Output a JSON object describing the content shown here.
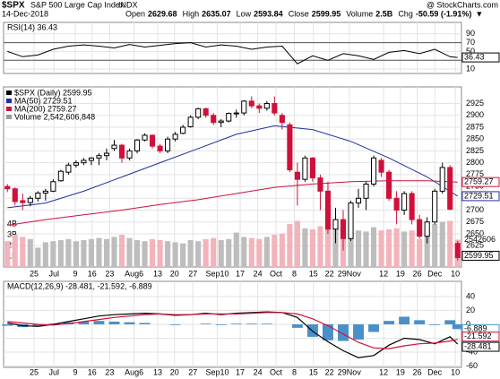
{
  "header": {
    "symbol": "$SPX",
    "name": "S&P 500 Large Cap Index",
    "exchange": "INDX",
    "date": "14-Dec-2018",
    "source": "@ StockCharts.com",
    "quote": [
      {
        "label": "Open",
        "value": "2629.68"
      },
      {
        "label": "High",
        "value": "2635.07"
      },
      {
        "label": "Low",
        "value": "2593.84"
      },
      {
        "label": "Close",
        "value": "2599.95"
      },
      {
        "label": "Volume",
        "value": "2.5B"
      },
      {
        "label": "Chg",
        "value": "-50.59 (-1.91%)"
      }
    ],
    "arrow": "▼"
  },
  "chart_data": [
    {
      "type": "line",
      "ylim": [
        0,
        116
      ],
      "yticks": [
        10,
        30,
        50,
        70,
        90
      ],
      "bands": [
        30,
        70
      ],
      "grid": true,
      "series": [
        {
          "name": "RSI(14) 36.43",
          "color": "#000000",
          "x": [
            0,
            2,
            4,
            6,
            8,
            10,
            12,
            14,
            16,
            18,
            20,
            22,
            24,
            26,
            28,
            30,
            32,
            34,
            36,
            38,
            40,
            42,
            44,
            46,
            48,
            50,
            52,
            54,
            56,
            58,
            59
          ],
          "values": [
            50,
            38,
            42,
            55,
            62,
            65,
            62,
            58,
            66,
            60,
            64,
            68,
            70,
            60,
            65,
            62,
            55,
            60,
            62,
            22,
            40,
            30,
            45,
            40,
            32,
            48,
            52,
            45,
            55,
            38,
            36.43
          ]
        }
      ]
    },
    {
      "type": "candlestick",
      "ylim": [
        2580,
        2960
      ],
      "yticks": [
        2625,
        2650,
        2675,
        2700,
        2725,
        2750,
        2775,
        2800,
        2825,
        2850,
        2875,
        2900,
        2925
      ],
      "grid": true,
      "xlim": [
        -0.5,
        59.5
      ],
      "xticks": [
        {
          "value": 3.5,
          "label": "25"
        },
        {
          "value": 6.1,
          "label": "Jul"
        },
        {
          "value": 8.9,
          "label": "9"
        },
        {
          "value": 11.1,
          "label": "16"
        },
        {
          "value": 13.4,
          "label": "23"
        },
        {
          "value": 16.6,
          "label": "Aug6"
        },
        {
          "value": 19.7,
          "label": "13"
        },
        {
          "value": 21.9,
          "label": "20"
        },
        {
          "value": 24.3,
          "label": "27"
        },
        {
          "value": 27.5,
          "label": "Sep10"
        },
        {
          "value": 30.5,
          "label": "17"
        },
        {
          "value": 32.8,
          "label": "24"
        },
        {
          "value": 35.2,
          "label": "Oct"
        },
        {
          "value": 37.6,
          "label": "8"
        },
        {
          "value": 40.1,
          "label": "15"
        },
        {
          "value": 42.2,
          "label": "22"
        },
        {
          "value": 44.8,
          "label": "29Nov"
        },
        {
          "value": 49.3,
          "label": "12"
        },
        {
          "value": 51.5,
          "label": "19"
        },
        {
          "value": 53.7,
          "label": "26"
        },
        {
          "value": 56,
          "label": "Dec"
        },
        {
          "value": 58.7,
          "label": "10"
        }
      ],
      "legend": "$SPX (Daily) 2599.95",
      "up_color": "#000000",
      "down_color": "#d0103a",
      "candles": [
        [
          2750,
          2755,
          2738,
          2745
        ],
        [
          2745,
          2748,
          2710,
          2718
        ],
        [
          2720,
          2735,
          2700,
          2716
        ],
        [
          2716,
          2730,
          2708,
          2725
        ],
        [
          2725,
          2740,
          2718,
          2736
        ],
        [
          2736,
          2745,
          2720,
          2740
        ],
        [
          2740,
          2765,
          2738,
          2760
        ],
        [
          2762,
          2785,
          2760,
          2782
        ],
        [
          2780,
          2800,
          2775,
          2795
        ],
        [
          2795,
          2805,
          2790,
          2800
        ],
        [
          2800,
          2810,
          2795,
          2805
        ],
        [
          2805,
          2812,
          2795,
          2810
        ],
        [
          2810,
          2820,
          2795,
          2815
        ],
        [
          2815,
          2830,
          2805,
          2820
        ],
        [
          2830,
          2848,
          2825,
          2837
        ],
        [
          2837,
          2840,
          2800,
          2810
        ],
        [
          2810,
          2830,
          2805,
          2825
        ],
        [
          2825,
          2850,
          2820,
          2848
        ],
        [
          2848,
          2862,
          2845,
          2858
        ],
        [
          2858,
          2860,
          2830,
          2835
        ],
        [
          2835,
          2840,
          2820,
          2825
        ],
        [
          2825,
          2855,
          2820,
          2850
        ],
        [
          2850,
          2865,
          2845,
          2860
        ],
        [
          2862,
          2880,
          2860,
          2875
        ],
        [
          2876,
          2900,
          2874,
          2896
        ],
        [
          2896,
          2916,
          2892,
          2914
        ],
        [
          2914,
          2916,
          2895,
          2900
        ],
        [
          2900,
          2905,
          2880,
          2885
        ],
        [
          2885,
          2892,
          2875,
          2888
        ],
        [
          2888,
          2906,
          2885,
          2904
        ],
        [
          2904,
          2912,
          2895,
          2905
        ],
        [
          2905,
          2932,
          2900,
          2930
        ],
        [
          2930,
          2940,
          2915,
          2920
        ],
        [
          2920,
          2925,
          2905,
          2915
        ],
        [
          2915,
          2930,
          2910,
          2925
        ],
        [
          2925,
          2940,
          2900,
          2905
        ],
        [
          2900,
          2905,
          2870,
          2885
        ],
        [
          2880,
          2885,
          2780,
          2785
        ],
        [
          2780,
          2800,
          2710,
          2765
        ],
        [
          2765,
          2815,
          2760,
          2810
        ],
        [
          2810,
          2812,
          2760,
          2768
        ],
        [
          2768,
          2775,
          2700,
          2740
        ],
        [
          2740,
          2760,
          2650,
          2660
        ],
        [
          2660,
          2705,
          2630,
          2680
        ],
        [
          2680,
          2700,
          2615,
          2640
        ],
        [
          2640,
          2720,
          2635,
          2715
        ],
        [
          2715,
          2745,
          2705,
          2725
        ],
        [
          2725,
          2760,
          2700,
          2755
        ],
        [
          2755,
          2815,
          2750,
          2810
        ],
        [
          2805,
          2810,
          2770,
          2780
        ],
        [
          2780,
          2785,
          2720,
          2725
        ],
        [
          2725,
          2740,
          2670,
          2700
        ],
        [
          2700,
          2740,
          2690,
          2735
        ],
        [
          2735,
          2740,
          2670,
          2680
        ],
        [
          2680,
          2690,
          2640,
          2645
        ],
        [
          2645,
          2685,
          2630,
          2675
        ],
        [
          2675,
          2745,
          2670,
          2740
        ],
        [
          2740,
          2800,
          2735,
          2790
        ],
        [
          2790,
          2795,
          2700,
          2702
        ],
        [
          2629.68,
          2635.07,
          2593.84,
          2599.95
        ]
      ],
      "volume": {
        "name": "Volume 2,542,606,848",
        "tag": "2542606",
        "ylim": [
          0,
          16.75
        ],
        "yticks": [
          {
            "value": 1,
            "label": "1B"
          },
          {
            "value": 2,
            "label": "2B"
          },
          {
            "value": 3,
            "label": "3B"
          },
          {
            "value": 4,
            "label": "4B"
          }
        ],
        "up_color": "#bdbdbd",
        "down_color": "#f2b3bb",
        "values": [
          2.4,
          3.0,
          2.8,
          2.6,
          1.8,
          2.3,
          2.4,
          2.5,
          2.6,
          2.4,
          2.5,
          2.6,
          2.7,
          2.6,
          2.8,
          3.0,
          2.7,
          2.5,
          2.4,
          2.6,
          2.5,
          2.4,
          2.3,
          2.2,
          2.5,
          2.4,
          2.6,
          2.7,
          2.5,
          2.6,
          3.2,
          2.8,
          2.7,
          2.6,
          2.8,
          3.0,
          3.1,
          4.0,
          4.3,
          3.6,
          3.5,
          3.8,
          4.1,
          4.2,
          4.0,
          3.9,
          3.4,
          3.3,
          3.7,
          3.4,
          3.5,
          3.6,
          3.3,
          3.4,
          2.6,
          3.6,
          4.0,
          4.2,
          4.3,
          2.54
        ]
      },
      "series": [
        {
          "name": "MA(50) 2729.51",
          "color": "#1f2f9e",
          "x": [
            0,
            5,
            10,
            15,
            20,
            25,
            30,
            35,
            40,
            45,
            50,
            55,
            59
          ],
          "values": [
            2705,
            2715,
            2740,
            2770,
            2800,
            2830,
            2860,
            2878,
            2870,
            2845,
            2810,
            2770,
            2729.51
          ]
        },
        {
          "name": "MA(200) 2759.27",
          "color": "#d0103a",
          "x": [
            0,
            5,
            10,
            15,
            20,
            25,
            30,
            35,
            40,
            45,
            50,
            55,
            59
          ],
          "values": [
            2668,
            2680,
            2690,
            2700,
            2712,
            2722,
            2735,
            2748,
            2755,
            2760,
            2762,
            2762,
            2759.27
          ]
        }
      ]
    },
    {
      "type": "macd",
      "title": "MACD(12,26,9) -28.481, -21.592, -6.889",
      "ylim": [
        -62,
        62
      ],
      "yticks": [
        -60,
        -40,
        -20,
        0,
        20,
        40
      ],
      "grid": true,
      "x": [
        0,
        2,
        4,
        6,
        8,
        10,
        12,
        14,
        16,
        18,
        20,
        22,
        24,
        26,
        28,
        30,
        32,
        34,
        36,
        38,
        40,
        42,
        44,
        46,
        48,
        50,
        52,
        54,
        56,
        58,
        59
      ],
      "series": [
        {
          "name": "MACD",
          "color": "#000000",
          "values": [
            2,
            -2,
            -3,
            0,
            4,
            8,
            12,
            14,
            15,
            16,
            15,
            13,
            14,
            16,
            14,
            16,
            17,
            18,
            17,
            10,
            -10,
            -25,
            -38,
            -48,
            -45,
            -30,
            -20,
            -22,
            -28,
            -18,
            -28.481
          ]
        },
        {
          "name": "Signal",
          "color": "#d0103a",
          "values": [
            4,
            2,
            0,
            -1,
            1,
            4,
            7,
            10,
            12,
            14,
            15,
            14,
            14,
            15,
            15,
            15,
            16,
            17,
            17,
            15,
            8,
            -2,
            -14,
            -26,
            -34,
            -35,
            -31,
            -28,
            -27,
            -24,
            -21.592
          ]
        }
      ],
      "histogram": {
        "color": "#4a90c8",
        "values": [
          -2,
          -4,
          -3,
          1,
          3,
          4,
          5,
          4,
          3,
          2,
          0,
          -1,
          0,
          1,
          -1,
          1,
          1,
          1,
          0,
          -5,
          -18,
          -23,
          -24,
          -22,
          -11,
          5,
          11,
          6,
          -1,
          6,
          -6.889
        ]
      }
    }
  ]
}
